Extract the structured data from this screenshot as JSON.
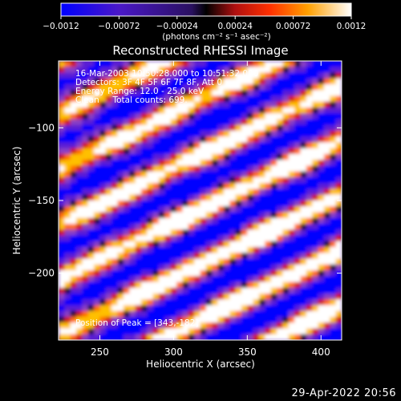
{
  "chart_data": {
    "type": "heatmap",
    "title": "Reconstructed RHESSI Image",
    "xlabel": "Heliocentric X (arcsec)",
    "ylabel": "Heliocentric Y (arcsec)",
    "xlim": [
      222,
      414
    ],
    "ylim": [
      -246,
      -54
    ],
    "x_ticks": [
      250,
      300,
      350,
      400
    ],
    "y_ticks": [
      -100,
      -150,
      -200
    ],
    "colorbar": {
      "min": -0.0012,
      "max": 0.0012,
      "tick_values": [
        -0.0012,
        -0.00072,
        -0.00024,
        0.00024,
        0.00072,
        0.0012
      ],
      "tick_labels": [
        "-0.0012",
        "-0.00072",
        "-0.00024",
        "0.00024",
        "0.00072",
        "0.0012"
      ],
      "units_label": "(photons cm⁻² s⁻¹ asec⁻²)"
    },
    "peak": {
      "x": 343,
      "y": -182
    },
    "annotations": {
      "time_range": "16-Mar-2003 10:50:28.000 to 10:51:32.000",
      "detectors": "Detectors: 3F 4F 5F 6F 7F 8F, Att 0",
      "energy_range": "Energy Range: 12.0 - 25.0 keV",
      "clean": "Clean     Total counts: 699.",
      "peak_position": "Position of Peak = [343,-182]"
    },
    "colors": [
      "#0000ff",
      "#5a1fd6",
      "#8a3fc4",
      "#b03060",
      "#d01818",
      "#ff6a00",
      "#ffc000",
      "#ffffff"
    ]
  },
  "footer": {
    "date": "29-Apr-2022 20:56"
  }
}
